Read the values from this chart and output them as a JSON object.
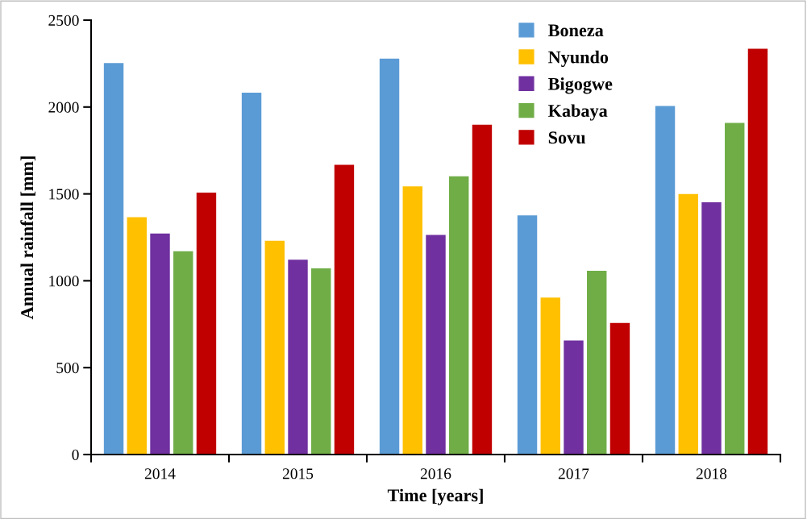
{
  "chart_data": {
    "type": "bar",
    "xlabel": "Time [years]",
    "ylabel": "Annual rainfall [mm]",
    "categories": [
      "2014",
      "2015",
      "2016",
      "2017",
      "2018"
    ],
    "series": [
      {
        "name": "Boneza",
        "color": "#5b9bd5",
        "values": [
          2253,
          2082,
          2279,
          1376,
          2006
        ]
      },
      {
        "name": "Nyundo",
        "color": "#ffc000",
        "values": [
          1366,
          1230,
          1543,
          903,
          1499
        ]
      },
      {
        "name": "Bigogwe",
        "color": "#7030a0",
        "values": [
          1272,
          1121,
          1264,
          656,
          1452
        ]
      },
      {
        "name": "Kabaya",
        "color": "#70ad47",
        "values": [
          1170,
          1071,
          1601,
          1057,
          1909
        ]
      },
      {
        "name": "Sovu",
        "color": "#c00000",
        "values": [
          1508,
          1667,
          1898,
          757,
          2335
        ]
      }
    ],
    "ylim": [
      0,
      2500
    ],
    "yticks": [
      0,
      500,
      1000,
      1500,
      2000,
      2500
    ],
    "grid": false,
    "legend": "top right"
  }
}
